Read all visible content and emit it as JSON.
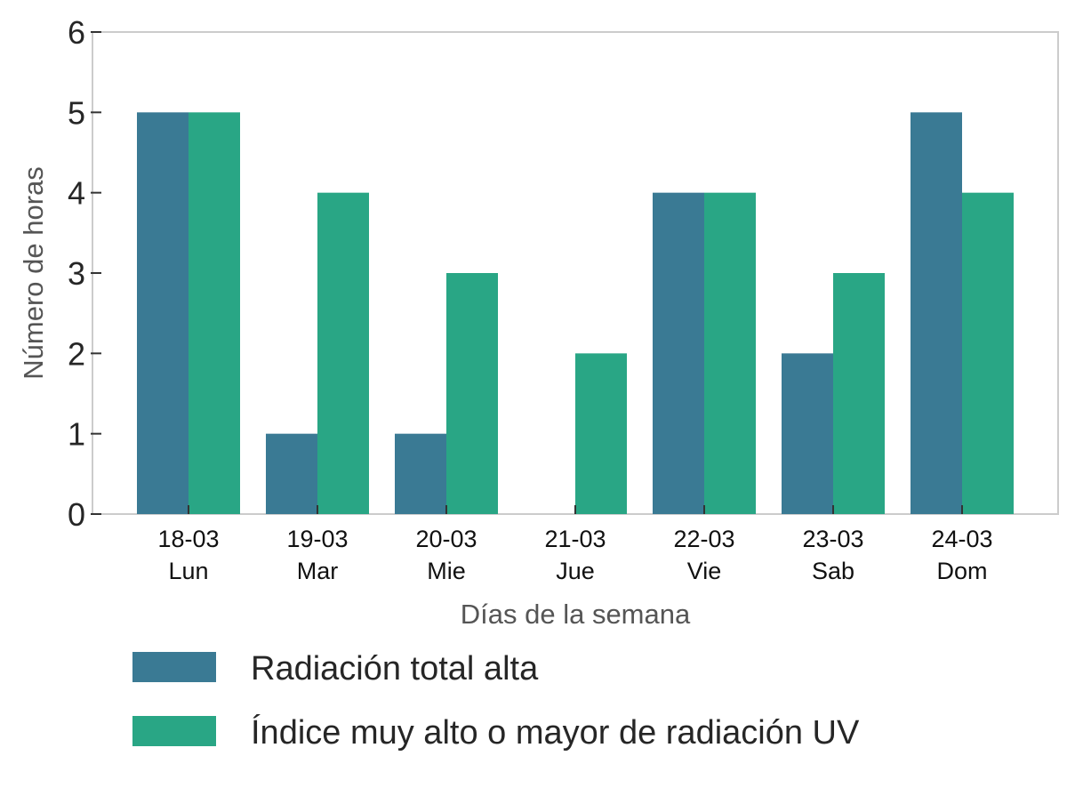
{
  "chart_data": {
    "type": "bar",
    "categories": [
      {
        "date": "18-03",
        "day": "Lun"
      },
      {
        "date": "19-03",
        "day": "Mar"
      },
      {
        "date": "20-03",
        "day": "Mie"
      },
      {
        "date": "21-03",
        "day": "Jue"
      },
      {
        "date": "22-03",
        "day": "Vie"
      },
      {
        "date": "23-03",
        "day": "Sab"
      },
      {
        "date": "24-03",
        "day": "Dom"
      }
    ],
    "series": [
      {
        "name": "Radiación total alta",
        "color": "#3a7a94",
        "values": [
          5,
          1,
          1,
          0,
          4,
          2,
          5
        ]
      },
      {
        "name": "Índice muy alto o mayor de radiación UV",
        "color": "#29a685",
        "values": [
          5,
          4,
          3,
          2,
          4,
          3,
          4
        ]
      }
    ],
    "xlabel": "Días de la semana",
    "ylabel": "Número de horas",
    "ylim": [
      0,
      6
    ],
    "yticks": [
      0,
      1,
      2,
      3,
      4,
      5,
      6
    ],
    "grid": false,
    "legend_position": "bottom"
  }
}
